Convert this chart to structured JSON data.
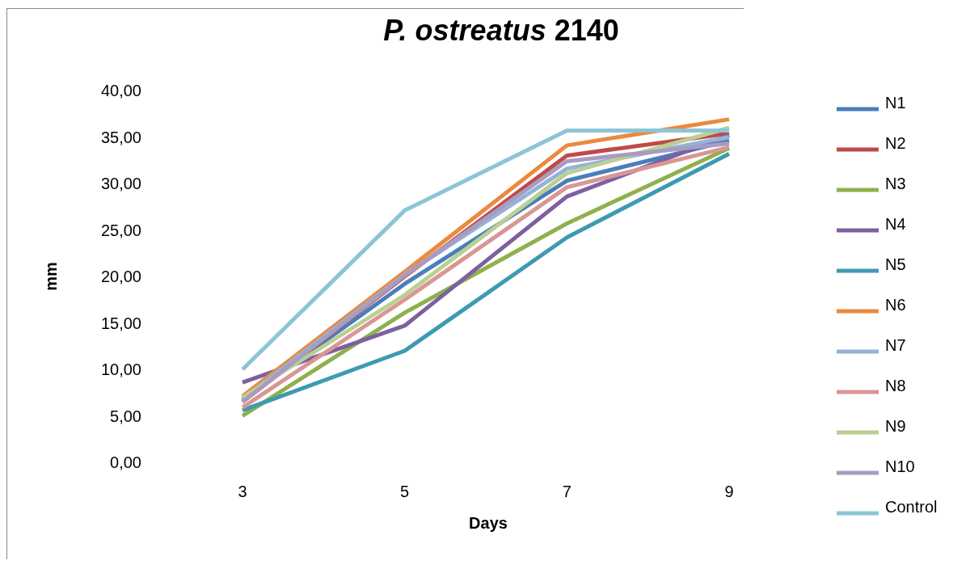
{
  "chart_data": {
    "type": "line",
    "title": "P. ostreatus 2140",
    "xlabel": "Days",
    "ylabel": "mm",
    "categories": [
      "3",
      "5",
      "7",
      "9"
    ],
    "ylim": [
      0,
      40
    ],
    "yticks": [
      {
        "value": 0,
        "label": "0,00"
      },
      {
        "value": 5,
        "label": "5,00"
      },
      {
        "value": 10,
        "label": "10,00"
      },
      {
        "value": 15,
        "label": "15,00"
      },
      {
        "value": 20,
        "label": "20,00"
      },
      {
        "value": 25,
        "label": "25,00"
      },
      {
        "value": 30,
        "label": "30,00"
      },
      {
        "value": 35,
        "label": "35,00"
      },
      {
        "value": 40,
        "label": "40,00"
      }
    ],
    "grid": false,
    "legend": "right",
    "marker": "none",
    "series": [
      {
        "name": "N1",
        "color": "#4a7ebb",
        "values": [
          6.7,
          19.2,
          30.3,
          34.6
        ]
      },
      {
        "name": "N2",
        "color": "#be4b48",
        "values": [
          6.5,
          20.0,
          33.0,
          35.4
        ]
      },
      {
        "name": "N3",
        "color": "#8fb04d",
        "values": [
          5.0,
          16.1,
          25.7,
          33.8
        ]
      },
      {
        "name": "N4",
        "color": "#7d60a0",
        "values": [
          8.6,
          14.7,
          28.6,
          35.2
        ]
      },
      {
        "name": "N5",
        "color": "#3e9ab3",
        "values": [
          5.6,
          12.0,
          24.2,
          33.2
        ]
      },
      {
        "name": "N6",
        "color": "#ea8a3f",
        "values": [
          7.1,
          20.5,
          34.1,
          36.9
        ]
      },
      {
        "name": "N7",
        "color": "#95b3d7",
        "values": [
          6.8,
          20.2,
          31.6,
          35.0
        ]
      },
      {
        "name": "N8",
        "color": "#d99694",
        "values": [
          5.9,
          17.5,
          29.6,
          33.9
        ]
      },
      {
        "name": "N9",
        "color": "#b9d092",
        "values": [
          7.0,
          18.0,
          31.1,
          36.0
        ]
      },
      {
        "name": "N10",
        "color": "#a99bc2",
        "values": [
          6.5,
          20.1,
          32.4,
          34.3
        ]
      },
      {
        "name": "Control",
        "color": "#8dc4d6",
        "values": [
          10.0,
          27.1,
          35.7,
          35.7
        ]
      }
    ]
  }
}
